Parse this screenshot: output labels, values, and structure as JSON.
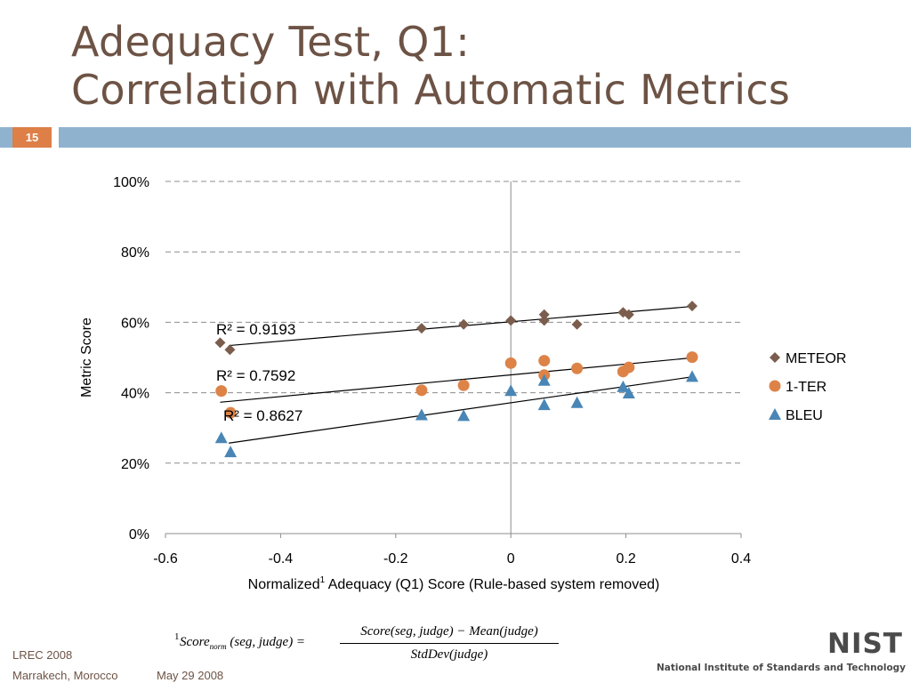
{
  "slide": {
    "title_line1": "Adequacy Test, Q1:",
    "title_line2": "Correlation with Automatic Metrics",
    "slide_number": "15",
    "footer_conf": "LREC 2008",
    "footer_location": "Marrakech, Morocco",
    "footer_date": "May 29 2008",
    "logo_text": "NIST",
    "logo_subtitle": "National Institute of Standards and Technology",
    "formula": {
      "superscript": "1",
      "lhs": "Score",
      "lhs_subscript": "norm",
      "lhs_args": "(seg, judge) =",
      "numerator": "Score(seg, judge) − Mean(judge)",
      "denominator": "StdDev(judge)"
    }
  },
  "colors": {
    "title": "#6d5345",
    "accent_bar": "#8fb2cf",
    "slide_number_bg": "#dd7f47",
    "meteor": "#7b5d4e",
    "ter": "#dd8347",
    "bleu": "#4a86b5"
  },
  "chart_data": {
    "type": "scatter",
    "title": "",
    "xlabel": "Normalized",
    "xlabel_sup": "1",
    "xlabel_rest": " Adequacy (Q1) Score (Rule-based system removed)",
    "ylabel": "Metric Score",
    "xlim": [
      -0.6,
      0.4
    ],
    "ylim": [
      0,
      100
    ],
    "x_ticks": [
      -0.6,
      -0.4,
      -0.2,
      0,
      0.2,
      0.4
    ],
    "x_tick_labels": [
      "-0.6",
      "-0.4",
      "-0.2",
      "0",
      "0.2",
      "0.4"
    ],
    "y_ticks": [
      0,
      20,
      40,
      60,
      80,
      100
    ],
    "y_tick_labels": [
      "0%",
      "20%",
      "40%",
      "60%",
      "80%",
      "100%"
    ],
    "grid": "horizontal dashed",
    "legend_position": "right",
    "series": [
      {
        "name": "METEOR",
        "marker": "diamond",
        "r2_label": "R² = 0.9193",
        "points": [
          [
            -0.505,
            54.2
          ],
          [
            -0.488,
            52.2
          ],
          [
            -0.155,
            58.3
          ],
          [
            -0.082,
            59.4
          ],
          [
            0.0,
            60.5
          ],
          [
            0.058,
            62.2
          ],
          [
            0.058,
            60.5
          ],
          [
            0.115,
            59.4
          ],
          [
            0.195,
            62.8
          ],
          [
            0.205,
            62.2
          ],
          [
            0.315,
            64.6
          ]
        ],
        "trend": [
          [
            -0.49,
            53.4
          ],
          [
            0.315,
            64.5
          ]
        ]
      },
      {
        "name": "1-TER",
        "marker": "circle",
        "r2_label": "R² = 0.7592",
        "points": [
          [
            -0.503,
            40.5
          ],
          [
            -0.487,
            34.3
          ],
          [
            -0.155,
            40.7
          ],
          [
            -0.082,
            42.1
          ],
          [
            0.0,
            48.4
          ],
          [
            0.058,
            49.1
          ],
          [
            0.058,
            45.0
          ],
          [
            0.115,
            46.9
          ],
          [
            0.195,
            46.0
          ],
          [
            0.205,
            47.2
          ],
          [
            0.315,
            50.1
          ]
        ],
        "trend": [
          [
            -0.505,
            37.3
          ],
          [
            0.315,
            49.9
          ]
        ]
      },
      {
        "name": "BLEU",
        "marker": "triangle",
        "r2_label": "R² = 0.8627",
        "points": [
          [
            -0.503,
            27.2
          ],
          [
            -0.487,
            23.2
          ],
          [
            -0.155,
            33.7
          ],
          [
            -0.082,
            33.5
          ],
          [
            0.0,
            40.6
          ],
          [
            0.058,
            43.5
          ],
          [
            0.058,
            36.6
          ],
          [
            0.115,
            37.2
          ],
          [
            0.195,
            41.7
          ],
          [
            0.205,
            39.9
          ],
          [
            0.315,
            44.6
          ]
        ],
        "trend": [
          [
            -0.49,
            25.7
          ],
          [
            0.315,
            44.5
          ]
        ]
      }
    ]
  }
}
